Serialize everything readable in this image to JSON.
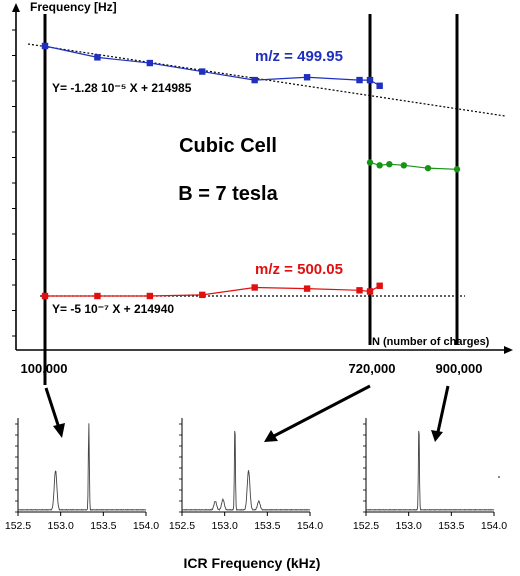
{
  "main_chart": {
    "y_axis_label": "Frequency [Hz]",
    "x_axis_label": "N (number of charges)",
    "x_tick_labels": [
      "100,000",
      "720,000",
      "900,000"
    ],
    "cell_label": "Cubic Cell",
    "field_label": "B = 7 tesla",
    "fit_upper": "Y= -1.28 10⁻⁵ X + 214985",
    "fit_lower": "Y= -5 10⁻⁷ X + 214940",
    "series_upper_label": "m/z = 499.95",
    "series_lower_label": "m/z = 500.05",
    "colors": {
      "upper": "#1f2fbf",
      "lower": "#e01010",
      "green": "#169416",
      "axis": "#000000"
    }
  },
  "spectra": {
    "x_ticks": [
      "152.5",
      "153.0",
      "153.5",
      "154.0"
    ],
    "xlabel": "ICR Frequency (kHz)"
  },
  "chart_data": [
    {
      "type": "scatter",
      "title": "",
      "xlabel": "N (number of charges)",
      "ylabel": "Frequency [Hz]",
      "x_ticks": [
        100000,
        720000,
        900000
      ],
      "series": [
        {
          "name": "m/z = 499.95",
          "x": [
            100000,
            200000,
            300000,
            400000,
            500000,
            600000,
            700000,
            720000,
            740000
          ],
          "y": [
            214984,
            214982,
            214981,
            214979.5,
            214978,
            214978.5,
            214978,
            214978,
            214977
          ]
        },
        {
          "name": "m/z = 500.05",
          "x": [
            100000,
            200000,
            300000,
            400000,
            500000,
            600000,
            700000,
            720000,
            740000
          ],
          "y": [
            214940,
            214940,
            214940,
            214940.2,
            214941.5,
            214941.3,
            214941,
            214940.8,
            214941.8
          ]
        },
        {
          "name": "",
          "x": [
            720000,
            740000,
            760000,
            790000,
            840000,
            900000
          ],
          "y": [
            214963.5,
            214963,
            214963.2,
            214963,
            214962.5,
            214962.3
          ]
        }
      ],
      "fits": [
        {
          "label": "Y= -1.28 10-5 X + 214985",
          "slope": -1.28e-05,
          "intercept": 214985
        },
        {
          "label": "Y= -5 10-7 X + 214940",
          "slope": -5e-07,
          "intercept": 214940
        }
      ]
    },
    {
      "type": "line",
      "xlabel": "ICR Frequency (kHz)",
      "xlim": [
        152.5,
        154.0
      ],
      "panels": [
        {
          "name": "100,000 charges",
          "peaks": [
            {
              "x": 152.94,
              "h": 0.45
            },
            {
              "x": 153.33,
              "h": 1.0
            }
          ]
        },
        {
          "name": "720,000 charges",
          "peaks": [
            {
              "x": 152.89,
              "h": 0.1
            },
            {
              "x": 152.98,
              "h": 0.12
            },
            {
              "x": 153.12,
              "h": 1.0
            },
            {
              "x": 153.28,
              "h": 0.45
            },
            {
              "x": 153.4,
              "h": 0.1
            }
          ]
        },
        {
          "name": "900,000 charges",
          "peaks": [
            {
              "x": 153.12,
              "h": 1.0
            }
          ]
        }
      ]
    }
  ]
}
